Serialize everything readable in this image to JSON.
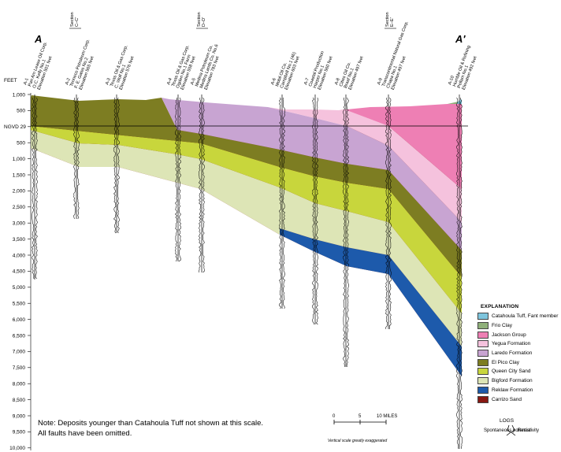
{
  "title_left": "A",
  "title_right": "A′",
  "axis": {
    "unit_label": "FEET",
    "datum_label": "NGVD 29",
    "ticks": [
      "1,000",
      "500",
      "NGVD 29",
      "500",
      "1,000",
      "1,500",
      "2,000",
      "2,500",
      "3,000",
      "3,500",
      "4,000",
      "4,500",
      "5,000",
      "5,500",
      "6,000",
      "6,500",
      "7,000",
      "7,500",
      "8,000",
      "8,500",
      "9,000",
      "9,500",
      "10,000"
    ]
  },
  "sections": [
    {
      "label": "Section",
      "ref": "C–C′"
    },
    {
      "label": "Section",
      "ref": "D–D′"
    },
    {
      "label": "Section",
      "ref": "E–E′"
    }
  ],
  "wells": [
    {
      "lines": [
        "A-1",
        "Pan Am Lease Oil Corp.",
        "O.C. Kelly No.1",
        "Elevation 501 feet"
      ]
    },
    {
      "lines": [
        "A-2",
        "Tenneco Petroleum Corp.",
        "F. E. Gates No.2",
        "Elevation 565 feet"
      ]
    },
    {
      "lines": [
        "A-3",
        "Texas Oil & Gas Corp.",
        "C. Wolf No.1",
        "Elevation 576 feet"
      ]
    },
    {
      "lines": [
        "A-4",
        "Texas Oil & Gas Corp.",
        "Ogden No.1 Farm",
        "Elevation 558 feet"
      ]
    },
    {
      "lines": [
        "A-5",
        "Medina Petroleum Co.",
        "Medina Lands Co. No.6",
        "Elevation 783 feet"
      ]
    },
    {
      "lines": [
        "A-6",
        "Mobil Oil Co.",
        "Campbell No.1 (46)",
        "Elevation 603 feet"
      ]
    },
    {
      "lines": [
        "A-7",
        "Coastal Production",
        "Harper No.1",
        "Elevation 560 feet"
      ]
    },
    {
      "lines": [
        "A-8",
        "Cities Oil Co.",
        "Braaf No.1",
        "Elevation 497 feet"
      ]
    },
    {
      "lines": [
        "A-9",
        "Transcontinental Natural Gas Corp.",
        "Chapa No.1",
        "Elevation 497 feet"
      ]
    },
    {
      "lines": [
        "A-10",
        "Humble Oil & Refining",
        "Pellam No.1",
        "Elevation 492 feet"
      ]
    }
  ],
  "legend": {
    "title": "EXPLANATION",
    "items": [
      {
        "label": "Catahoula Tuff, Fant member",
        "color": "#7ec5dd"
      },
      {
        "label": "Frio Clay",
        "color": "#8fb07a"
      },
      {
        "label": "Jackson Group",
        "color": "#ee7fb4"
      },
      {
        "label": "Yegua Formation",
        "color": "#f5c2dd"
      },
      {
        "label": "Laredo Formation",
        "color": "#c8a4d2"
      },
      {
        "label": "El Pico Clay",
        "color": "#7d7d22"
      },
      {
        "label": "Queen City Sand",
        "color": "#c8d63c"
      },
      {
        "label": "Bigford Formation",
        "color": "#dde5b6"
      },
      {
        "label": "Reklaw Formation",
        "color": "#1d5aab"
      },
      {
        "label": "Carrizo Sand",
        "color": "#881812"
      }
    ]
  },
  "logs": {
    "title": "LOGS",
    "left": "Spontaneous potential",
    "right": "Resistivity"
  },
  "scale": {
    "labels": [
      "0",
      "5",
      "10 MILES"
    ],
    "caption": "Vertical scale greatly exaggerated"
  },
  "note": {
    "line1": "Note: Deposits younger than Catahoula Tuff not shown at this scale.",
    "line2": "All faults have been omitted."
  }
}
